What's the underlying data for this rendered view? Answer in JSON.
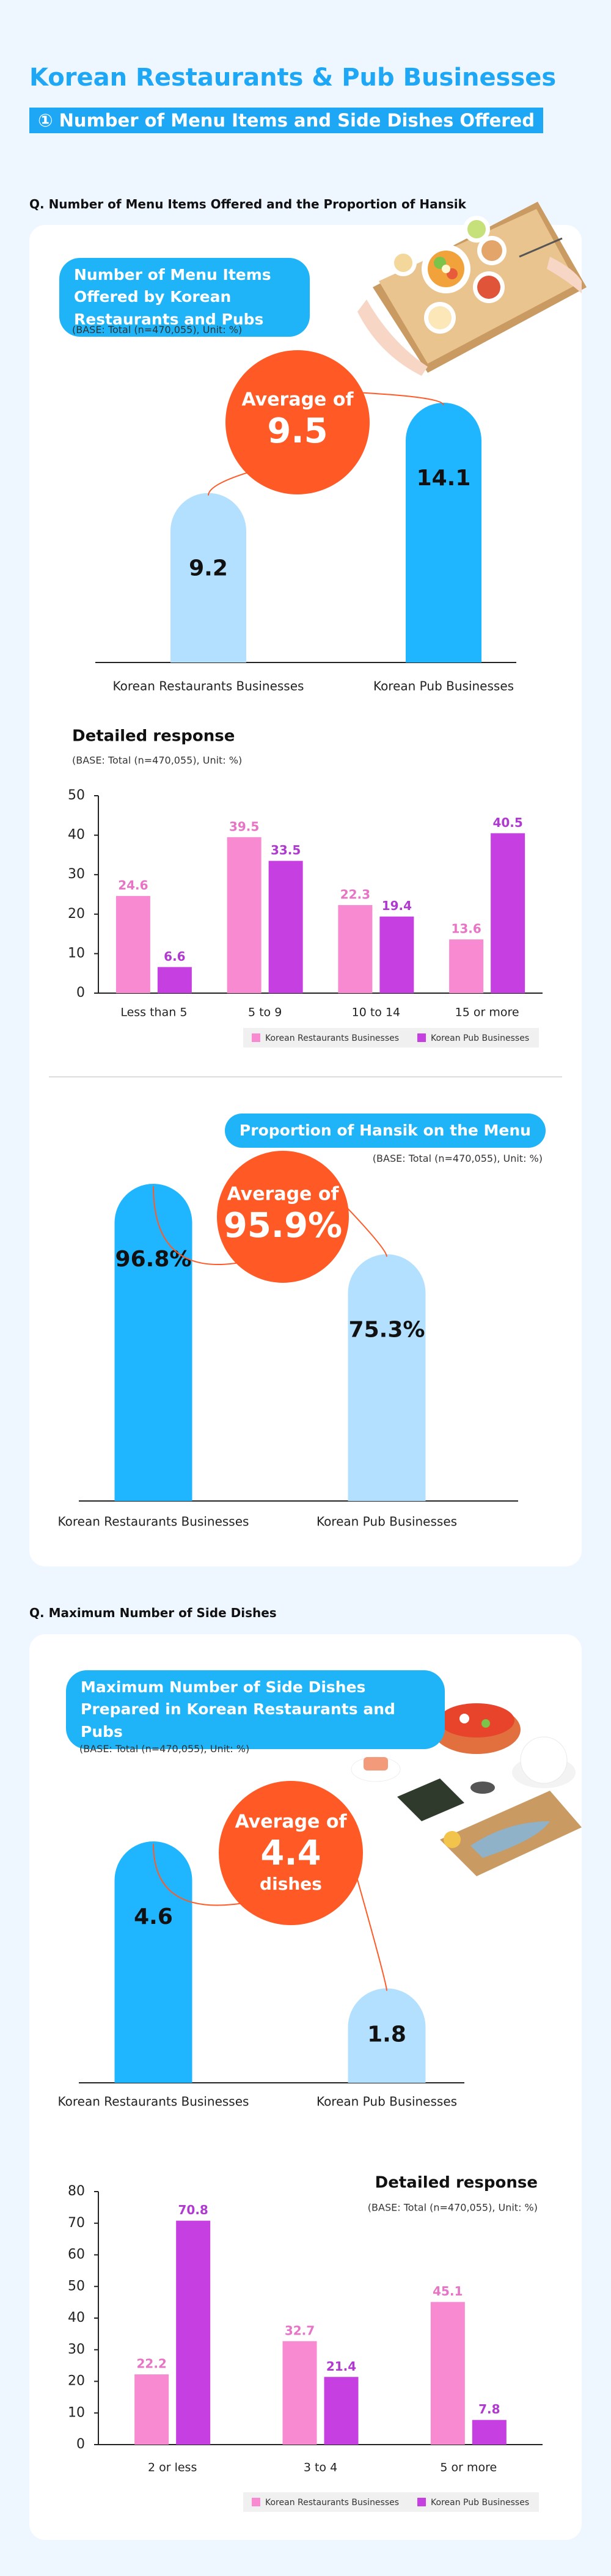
{
  "header": {
    "title": "Korean Restaurants & Pub Businesses",
    "section_label": "① Number of Menu Items and Side Dishes Offered"
  },
  "sections": [
    {
      "question": "Q. Number of Menu Items Offered and the Proportion of Hansik"
    },
    {
      "question": "Q. Maximum Number of Side Dishes"
    }
  ],
  "chart_data": [
    {
      "type": "bar",
      "title": "Number of Menu Items Offered by Korean Restaurants and Pubs",
      "note": "(BASE: Total (n=470,055), Unit: %)",
      "categories": [
        "Korean Restaurants Businesses",
        "Korean Pub Businesses"
      ],
      "values": [
        9.2,
        14.1
      ],
      "colors": [
        "#b3e0ff",
        "#1fb6ff"
      ],
      "average": {
        "label": "Average of",
        "value": 9.5
      },
      "average_color": "#ff5a26"
    },
    {
      "type": "grouped_bar",
      "title": "Detailed response",
      "note": "(BASE: Total (n=470,055), Unit: %)",
      "categories": [
        "Less than 5",
        "5 to 9",
        "10 to 14",
        "15 or more"
      ],
      "series": [
        {
          "name": "Korean Restaurants Businesses",
          "color": "#f78ad0",
          "label_color": "#e774c4",
          "values": [
            24.6,
            39.5,
            22.3,
            13.6
          ]
        },
        {
          "name": "Korean Pub Businesses",
          "color": "#c63fe0",
          "label_color": "#b03ad0",
          "values": [
            6.6,
            33.5,
            19.4,
            40.5
          ]
        }
      ],
      "ylim": [
        0,
        50
      ],
      "yticks": [
        0,
        10,
        20,
        30,
        40,
        50
      ],
      "legend": "bottom-right"
    },
    {
      "type": "bar",
      "title": "Proportion of Hansik on the Menu",
      "note": "(BASE: Total (n=470,055), Unit: %)",
      "categories": [
        "Korean Restaurants Businesses",
        "Korean Pub Businesses"
      ],
      "values": [
        96.8,
        75.3
      ],
      "value_labels": [
        "96.8%",
        "75.3%"
      ],
      "colors": [
        "#1fb6ff",
        "#b3e0ff"
      ],
      "average": {
        "label": "Average of",
        "value": 95.9,
        "value_label": "95.9%"
      },
      "average_color": "#ff5a26"
    },
    {
      "type": "bar",
      "title": "Maximum Number of Side Dishes Prepared in Korean Restaurants and Pubs",
      "note": "(BASE: Total (n=470,055), Unit: %)",
      "categories": [
        "Korean Restaurants Businesses",
        "Korean Pub Businesses"
      ],
      "values": [
        4.6,
        1.8
      ],
      "colors": [
        "#1fb6ff",
        "#b3e0ff"
      ],
      "average": {
        "label": "Average of",
        "value": 4.4,
        "unit": "dishes"
      },
      "average_color": "#ff5a26"
    },
    {
      "type": "grouped_bar",
      "title": "Detailed response",
      "note": "(BASE: Total (n=470,055), Unit: %)",
      "categories": [
        "2 or less",
        "3 to 4",
        "5 or more"
      ],
      "series": [
        {
          "name": "Korean Restaurants Businesses",
          "color": "#f78ad0",
          "label_color": "#e774c4",
          "values": [
            22.2,
            32.7,
            45.1
          ]
        },
        {
          "name": "Korean Pub Businesses",
          "color": "#c63fe0",
          "label_color": "#b03ad0",
          "values": [
            70.8,
            21.4,
            7.8
          ]
        }
      ],
      "ylim": [
        0,
        80
      ],
      "yticks": [
        0,
        10,
        20,
        30,
        40,
        50,
        60,
        70,
        80
      ],
      "legend": "bottom-right"
    }
  ]
}
